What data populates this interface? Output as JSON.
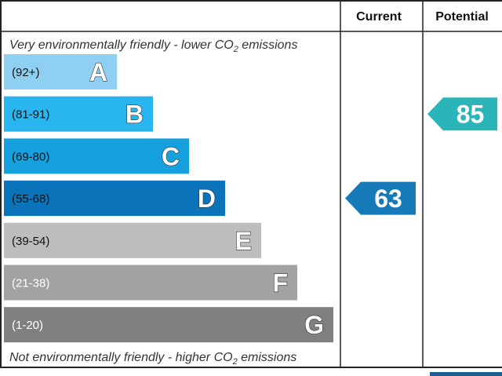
{
  "chart_data": {
    "type": "bar",
    "headers": {
      "current": "Current",
      "potential": "Potential"
    },
    "top_caption": {
      "before": "Very environmentally friendly - lower CO",
      "sub": "2",
      "after": " emissions"
    },
    "bottom_caption": {
      "before": "Not environmentally friendly - higher CO",
      "sub": "2",
      "after": " emissions"
    },
    "bands": [
      {
        "letter": "A",
        "range": "(92+)",
        "color": "#8fd0f2",
        "range_color": "#111111"
      },
      {
        "letter": "B",
        "range": "(81-91)",
        "color": "#29b6f0",
        "range_color": "#111111"
      },
      {
        "letter": "C",
        "range": "(69-80)",
        "color": "#16a0de",
        "range_color": "#111111"
      },
      {
        "letter": "D",
        "range": "(55-68)",
        "color": "#0a73ba",
        "range_color": "#111111"
      },
      {
        "letter": "E",
        "range": "(39-54)",
        "color": "#bdbdbd",
        "range_color": "#111111"
      },
      {
        "letter": "F",
        "range": "(21-38)",
        "color": "#a2a2a2",
        "range_color": "#ffffff"
      },
      {
        "letter": "G",
        "range": "(1-20)",
        "color": "#808080",
        "range_color": "#ffffff"
      }
    ],
    "current": {
      "value": "63",
      "band": "D",
      "color": "#1679b8"
    },
    "potential": {
      "value": "85",
      "band": "B",
      "color": "#2bb5b9"
    }
  }
}
